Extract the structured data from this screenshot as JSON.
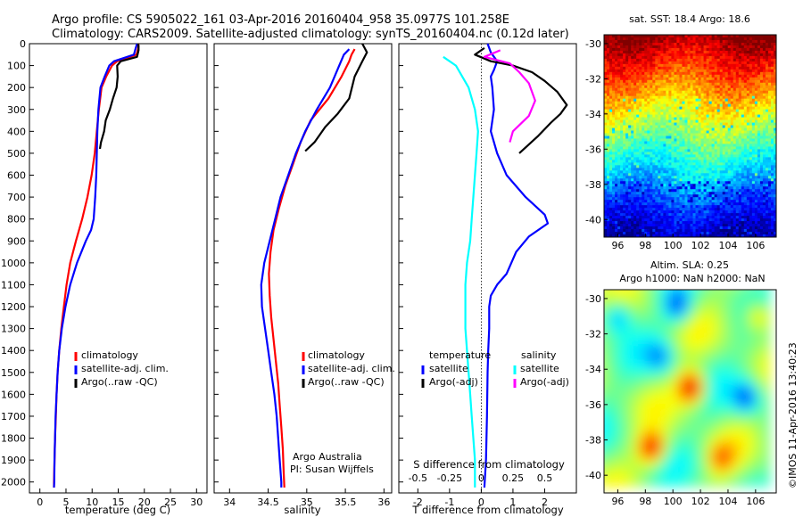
{
  "header": {
    "title_line1": "Argo profile: CS 5905022_161 03-Apr-2016 20160404_958 35.0977S 101.258E",
    "title_line2": "Climatology: CARS2009. Satellite-adjusted climatology: synTS_20160404.nc (0.12d later)"
  },
  "colors": {
    "climatology": "#ff0000",
    "satellite": "#0000ff",
    "argo": "#000000",
    "s_satellite": "#00ffff",
    "s_argo": "#ff00ff"
  },
  "chart_data": [
    {
      "type": "line",
      "panel": "temperature",
      "xlabel": "temperature (deg C)",
      "ylabel": "",
      "xlim": [
        -2,
        32
      ],
      "ylim": [
        2050,
        0
      ],
      "xticks": [
        0,
        5,
        10,
        15,
        20,
        25,
        30
      ],
      "yticks": [
        0,
        100,
        200,
        300,
        400,
        500,
        600,
        700,
        800,
        900,
        1000,
        1100,
        1200,
        1300,
        1400,
        1500,
        1600,
        1700,
        1800,
        1900,
        2000
      ],
      "y_inverted": true,
      "legend_position": "lower-center",
      "series": [
        {
          "name": "climatology",
          "color": "#ff0000",
          "points": [
            [
              18.9,
              0
            ],
            [
              18.8,
              25
            ],
            [
              18.5,
              50
            ],
            [
              14.8,
              80
            ],
            [
              13.8,
              100
            ],
            [
              12.7,
              150
            ],
            [
              11.8,
              200
            ],
            [
              11.3,
              300
            ],
            [
              10.9,
              400
            ],
            [
              10.5,
              500
            ],
            [
              9.9,
              600
            ],
            [
              9.1,
              700
            ],
            [
              8.1,
              800
            ],
            [
              6.9,
              900
            ],
            [
              5.8,
              1000
            ],
            [
              5.1,
              1100
            ],
            [
              4.6,
              1200
            ],
            [
              4.1,
              1300
            ],
            [
              3.7,
              1400
            ],
            [
              3.4,
              1500
            ],
            [
              3.2,
              1600
            ],
            [
              3.05,
              1700
            ],
            [
              2.9,
              1800
            ],
            [
              2.8,
              1900
            ],
            [
              2.7,
              2000
            ],
            [
              2.7,
              2025
            ]
          ]
        },
        {
          "name": "satellite-adj. clim.",
          "color": "#0000ff",
          "points": [
            [
              18.6,
              0
            ],
            [
              18.3,
              25
            ],
            [
              18.0,
              50
            ],
            [
              14.2,
              80
            ],
            [
              13.3,
              100
            ],
            [
              12.4,
              150
            ],
            [
              11.6,
              200
            ],
            [
              11.2,
              300
            ],
            [
              11.0,
              400
            ],
            [
              10.9,
              500
            ],
            [
              10.8,
              600
            ],
            [
              10.6,
              700
            ],
            [
              10.3,
              800
            ],
            [
              9.8,
              850
            ],
            [
              8.8,
              900
            ],
            [
              7.1,
              1000
            ],
            [
              5.8,
              1100
            ],
            [
              4.9,
              1200
            ],
            [
              4.2,
              1300
            ],
            [
              3.7,
              1400
            ],
            [
              3.4,
              1500
            ],
            [
              3.2,
              1600
            ],
            [
              3.0,
              1700
            ],
            [
              2.9,
              1800
            ],
            [
              2.8,
              1900
            ],
            [
              2.75,
              2000
            ],
            [
              2.7,
              2025
            ]
          ]
        },
        {
          "name": "Argo(..raw -QC)",
          "color": "#000000",
          "points": [
            [
              18.8,
              0
            ],
            [
              18.9,
              10
            ],
            [
              18.9,
              30
            ],
            [
              18.6,
              60
            ],
            [
              15.5,
              80
            ],
            [
              14.8,
              100
            ],
            [
              14.9,
              150
            ],
            [
              14.7,
              200
            ],
            [
              14.0,
              250
            ],
            [
              13.4,
              300
            ],
            [
              12.6,
              350
            ],
            [
              12.3,
              400
            ],
            [
              11.7,
              450
            ],
            [
              11.5,
              480
            ]
          ]
        }
      ],
      "legend": [
        "climatology",
        "satellite-adj. clim.",
        "Argo(..raw -QC)"
      ]
    },
    {
      "type": "line",
      "panel": "salinity",
      "xlabel": "salinity",
      "xlim": [
        33.8,
        36.1
      ],
      "ylim": [
        2050,
        0
      ],
      "xticks": [
        34,
        34.5,
        35,
        35.5,
        36
      ],
      "xtick_labels": [
        "34",
        "34.5",
        "35",
        "35.5",
        "36"
      ],
      "y_inverted": true,
      "legend_position": "lower-right",
      "annotation": [
        "Argo Australia",
        "PI: Susan Wijffels"
      ],
      "series": [
        {
          "name": "climatology",
          "color": "#ff0000",
          "points": [
            [
              35.62,
              25
            ],
            [
              35.58,
              50
            ],
            [
              35.55,
              80
            ],
            [
              35.45,
              150
            ],
            [
              35.28,
              250
            ],
            [
              35.05,
              350
            ],
            [
              34.92,
              450
            ],
            [
              34.82,
              550
            ],
            [
              34.72,
              650
            ],
            [
              34.64,
              750
            ],
            [
              34.57,
              850
            ],
            [
              34.53,
              950
            ],
            [
              34.51,
              1050
            ],
            [
              34.52,
              1150
            ],
            [
              34.54,
              1250
            ],
            [
              34.57,
              1350
            ],
            [
              34.6,
              1450
            ],
            [
              34.63,
              1550
            ],
            [
              34.65,
              1650
            ],
            [
              34.67,
              1750
            ],
            [
              34.69,
              1850
            ],
            [
              34.7,
              1950
            ],
            [
              34.71,
              2025
            ]
          ]
        },
        {
          "name": "satellite-adj. clim.",
          "color": "#0000ff",
          "points": [
            [
              35.55,
              25
            ],
            [
              35.48,
              50
            ],
            [
              35.42,
              100
            ],
            [
              35.3,
              200
            ],
            [
              35.13,
              300
            ],
            [
              34.98,
              400
            ],
            [
              34.86,
              500
            ],
            [
              34.76,
              600
            ],
            [
              34.66,
              700
            ],
            [
              34.59,
              800
            ],
            [
              34.52,
              900
            ],
            [
              34.45,
              1000
            ],
            [
              34.41,
              1100
            ],
            [
              34.42,
              1200
            ],
            [
              34.46,
              1300
            ],
            [
              34.5,
              1400
            ],
            [
              34.54,
              1500
            ],
            [
              34.58,
              1600
            ],
            [
              34.61,
              1700
            ],
            [
              34.63,
              1800
            ],
            [
              34.65,
              1900
            ],
            [
              34.67,
              2000
            ],
            [
              34.67,
              2025
            ]
          ]
        },
        {
          "name": "Argo(..raw -QC)",
          "color": "#000000",
          "points": [
            [
              35.72,
              0
            ],
            [
              35.75,
              20
            ],
            [
              35.78,
              40
            ],
            [
              35.72,
              80
            ],
            [
              35.62,
              150
            ],
            [
              35.55,
              250
            ],
            [
              35.4,
              320
            ],
            [
              35.24,
              380
            ],
            [
              35.1,
              450
            ],
            [
              34.98,
              490
            ]
          ]
        }
      ],
      "legend": [
        "climatology",
        "satellite-adj. clim.",
        "Argo(..raw -QC)"
      ]
    },
    {
      "type": "line",
      "panel": "differences",
      "xlabel": "T difference from climatology",
      "top_xlabel": "S difference from climatology",
      "xlim": [
        -2.6,
        3.0
      ],
      "ylim": [
        2050,
        0
      ],
      "xticks": [
        -2,
        -1,
        0,
        1,
        2
      ],
      "top_xticks": [
        -0.5,
        -0.25,
        0,
        0.25,
        0.5
      ],
      "top_xtick_labels": [
        "-0.5",
        "-0.25",
        "0",
        "0.25",
        "0.5"
      ],
      "zero_line": true,
      "y_inverted": true,
      "legend_titles": [
        "temperature",
        "salinity"
      ],
      "legend_temperature": [
        "satellite",
        "Argo(-adj)"
      ],
      "legend_salinity": [
        "satellite",
        "Argo(-adj)"
      ],
      "series": [
        {
          "name": "satellite",
          "group": "temperature",
          "color": "#0000ff",
          "points": [
            [
              0.2,
              0
            ],
            [
              0.3,
              40
            ],
            [
              0.5,
              80
            ],
            [
              0.4,
              120
            ],
            [
              0.3,
              150
            ],
            [
              0.35,
              200
            ],
            [
              0.4,
              300
            ],
            [
              0.3,
              400
            ],
            [
              0.5,
              500
            ],
            [
              0.8,
              600
            ],
            [
              1.4,
              700
            ],
            [
              2.0,
              780
            ],
            [
              2.1,
              820
            ],
            [
              1.5,
              880
            ],
            [
              1.1,
              950
            ],
            [
              0.8,
              1050
            ],
            [
              0.5,
              1100
            ],
            [
              0.3,
              1150
            ],
            [
              0.25,
              1200
            ],
            [
              0.25,
              1300
            ],
            [
              0.22,
              1400
            ],
            [
              0.2,
              1500
            ],
            [
              0.18,
              1700
            ],
            [
              0.15,
              1900
            ],
            [
              0.1,
              2025
            ]
          ]
        },
        {
          "name": "Argo(-adj)",
          "group": "temperature",
          "color": "#000000",
          "points": [
            [
              0.1,
              20
            ],
            [
              -0.2,
              50
            ],
            [
              0.3,
              80
            ],
            [
              1.0,
              100
            ],
            [
              1.6,
              130
            ],
            [
              2.0,
              170
            ],
            [
              2.4,
              220
            ],
            [
              2.7,
              280
            ],
            [
              2.5,
              320
            ],
            [
              2.2,
              360
            ],
            [
              1.8,
              420
            ],
            [
              1.2,
              500
            ]
          ]
        },
        {
          "name": "satellite",
          "group": "salinity",
          "color": "#00ffff",
          "points": [
            [
              -1.2,
              60
            ],
            [
              -1.0,
              80
            ],
            [
              -0.8,
              100
            ],
            [
              -0.4,
              200
            ],
            [
              -0.2,
              300
            ],
            [
              -0.1,
              400
            ],
            [
              -0.15,
              500
            ],
            [
              -0.2,
              600
            ],
            [
              -0.25,
              700
            ],
            [
              -0.3,
              800
            ],
            [
              -0.35,
              900
            ],
            [
              -0.45,
              1000
            ],
            [
              -0.5,
              1100
            ],
            [
              -0.5,
              1200
            ],
            [
              -0.5,
              1300
            ],
            [
              -0.45,
              1400
            ],
            [
              -0.4,
              1500
            ],
            [
              -0.35,
              1600
            ],
            [
              -0.3,
              1700
            ],
            [
              -0.25,
              1800
            ],
            [
              -0.2,
              1900
            ],
            [
              -0.2,
              2025
            ]
          ]
        },
        {
          "name": "Argo(-adj)",
          "group": "salinity",
          "color": "#ff00ff",
          "points": [
            [
              0.6,
              30
            ],
            [
              0.1,
              60
            ],
            [
              0.9,
              90
            ],
            [
              1.2,
              130
            ],
            [
              1.5,
              180
            ],
            [
              1.7,
              260
            ],
            [
              1.5,
              330
            ],
            [
              1.0,
              400
            ],
            [
              0.9,
              450
            ]
          ]
        }
      ]
    },
    {
      "type": "heatmap",
      "panel": "sst_map",
      "title": "sat. SST: 18.4  Argo: 18.6",
      "xlim": [
        95,
        107.5
      ],
      "ylim": [
        -41,
        -29.5
      ],
      "xticks": [
        96,
        98,
        100,
        102,
        104,
        106
      ],
      "yticks": [
        -30,
        -32,
        -34,
        -36,
        -38,
        -40
      ]
    },
    {
      "type": "heatmap",
      "panel": "sla_map",
      "title_line1": "Altim. SLA: 0.25",
      "title_line2": "Argo h1000: NaN h2000: NaN",
      "xlim": [
        95,
        107.5
      ],
      "ylim": [
        -41,
        -29.5
      ],
      "xticks": [
        96,
        98,
        100,
        102,
        104,
        106
      ],
      "yticks": [
        -30,
        -32,
        -34,
        -36,
        -38,
        -40
      ]
    }
  ],
  "credit": "©IMOS 11-Apr-2016 13:40:23"
}
